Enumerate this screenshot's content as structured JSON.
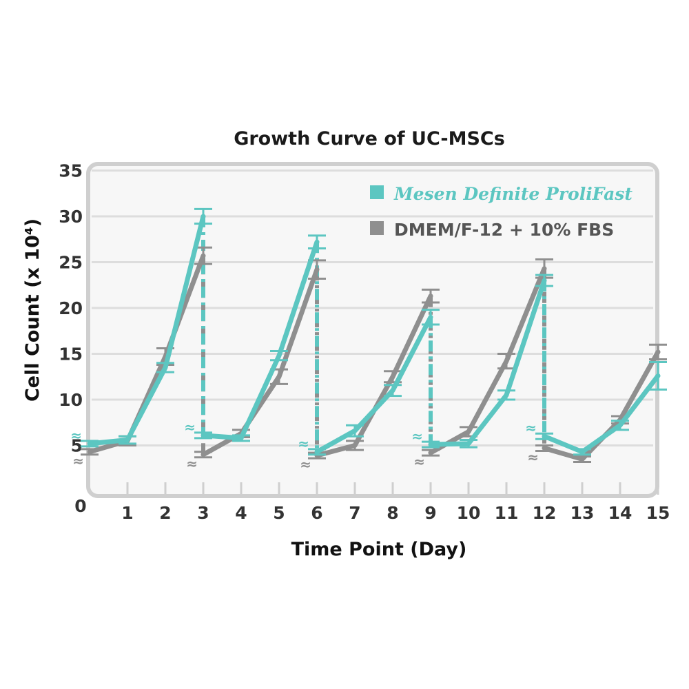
{
  "colors": {
    "series_a": "#5cc6c1",
    "series_b": "#8f8f8f",
    "grid": "#dddddd",
    "frame": "#cfcfcf"
  },
  "chart_data": {
    "type": "line",
    "title": "Growth Curve of UC-MSCs",
    "xlabel": "Time Point (Day)",
    "ylabel": "Cell Count (x 10⁴)",
    "xlim": [
      0,
      15
    ],
    "ylim": [
      0,
      35
    ],
    "grid": true,
    "legend_position": "top-right",
    "x_ticks": [
      "0",
      "1",
      "2",
      "3",
      "4",
      "5",
      "6",
      "7",
      "8",
      "9",
      "10",
      "11",
      "12",
      "13",
      "14",
      "15"
    ],
    "y_ticks": [
      "35",
      "30",
      "25",
      "20",
      "15",
      "10",
      "5"
    ],
    "passage_days": [
      3,
      6,
      9,
      12
    ],
    "approx_symbol": "≈",
    "series": [
      {
        "name": "Mesen Definite ProliFast",
        "legend_part1": "Mesen Definite",
        "legend_part2": "ProliFast",
        "segments": [
          [
            [
              0,
              5.2
            ],
            [
              1,
              5.6
            ],
            [
              2,
              13.5
            ],
            [
              3,
              30.0
            ]
          ],
          [
            [
              3,
              6.1
            ],
            [
              4,
              5.8
            ],
            [
              5,
              14.8
            ],
            [
              6,
              27.2
            ]
          ],
          [
            [
              6,
              4.3
            ],
            [
              7,
              6.6
            ],
            [
              8,
              11.0
            ],
            [
              9,
              19.0
            ]
          ],
          [
            [
              9,
              5.1
            ],
            [
              10,
              5.2
            ],
            [
              11,
              10.5
            ],
            [
              12,
              23.0
            ]
          ],
          [
            [
              12,
              6.0
            ],
            [
              13,
              4.3
            ],
            [
              14,
              7.2
            ],
            [
              15,
              12.6
            ]
          ]
        ],
        "errors": [
          [
            0,
            5.2,
            0.3
          ],
          [
            1,
            5.6,
            0.4
          ],
          [
            2,
            13.5,
            0.5
          ],
          [
            3,
            30.0,
            0.8
          ],
          [
            3,
            6.1,
            0.3
          ],
          [
            4,
            5.8,
            0.3
          ],
          [
            5,
            14.8,
            0.5
          ],
          [
            6,
            27.2,
            0.7
          ],
          [
            6,
            4.3,
            0.3
          ],
          [
            7,
            6.6,
            0.6
          ],
          [
            8,
            11.0,
            0.6
          ],
          [
            9,
            19.0,
            0.8
          ],
          [
            9,
            5.1,
            0.3
          ],
          [
            10,
            5.2,
            0.4
          ],
          [
            11,
            10.5,
            0.5
          ],
          [
            12,
            23.0,
            0.6
          ],
          [
            12,
            6.0,
            0.3
          ],
          [
            13,
            4.3,
            0.3
          ],
          [
            14,
            7.2,
            0.5
          ],
          [
            15,
            12.6,
            1.5
          ]
        ]
      },
      {
        "name": "DMEM/F-12 + 10% FBS",
        "legend_label": "DMEM/F-12 + 10% FBS",
        "segments": [
          [
            [
              0,
              4.3
            ],
            [
              1,
              5.5
            ],
            [
              2,
              14.7
            ],
            [
              3,
              25.7
            ]
          ],
          [
            [
              3,
              4.0
            ],
            [
              4,
              6.3
            ],
            [
              5,
              12.5
            ],
            [
              6,
              24.2
            ]
          ],
          [
            [
              6,
              3.9
            ],
            [
              7,
              5.0
            ],
            [
              8,
              12.5
            ],
            [
              9,
              21.3
            ]
          ],
          [
            [
              9,
              4.2
            ],
            [
              10,
              6.5
            ],
            [
              11,
              14.2
            ],
            [
              12,
              24.3
            ]
          ],
          [
            [
              12,
              4.7
            ],
            [
              13,
              3.5
            ],
            [
              14,
              7.8
            ],
            [
              15,
              15.2
            ]
          ]
        ],
        "errors": [
          [
            0,
            4.3,
            0.3
          ],
          [
            1,
            5.5,
            0.5
          ],
          [
            2,
            14.7,
            0.9
          ],
          [
            3,
            25.7,
            0.9
          ],
          [
            3,
            4.0,
            0.3
          ],
          [
            4,
            6.3,
            0.4
          ],
          [
            5,
            12.5,
            0.8
          ],
          [
            6,
            24.2,
            1.0
          ],
          [
            6,
            3.9,
            0.3
          ],
          [
            7,
            5.0,
            0.5
          ],
          [
            8,
            12.5,
            0.6
          ],
          [
            9,
            21.3,
            0.7
          ],
          [
            9,
            4.2,
            0.3
          ],
          [
            10,
            6.5,
            0.5
          ],
          [
            11,
            14.2,
            0.8
          ],
          [
            12,
            24.3,
            1.0
          ],
          [
            12,
            4.7,
            0.3
          ],
          [
            13,
            3.5,
            0.3
          ],
          [
            14,
            7.8,
            0.4
          ],
          [
            15,
            15.2,
            0.8
          ]
        ]
      }
    ]
  }
}
